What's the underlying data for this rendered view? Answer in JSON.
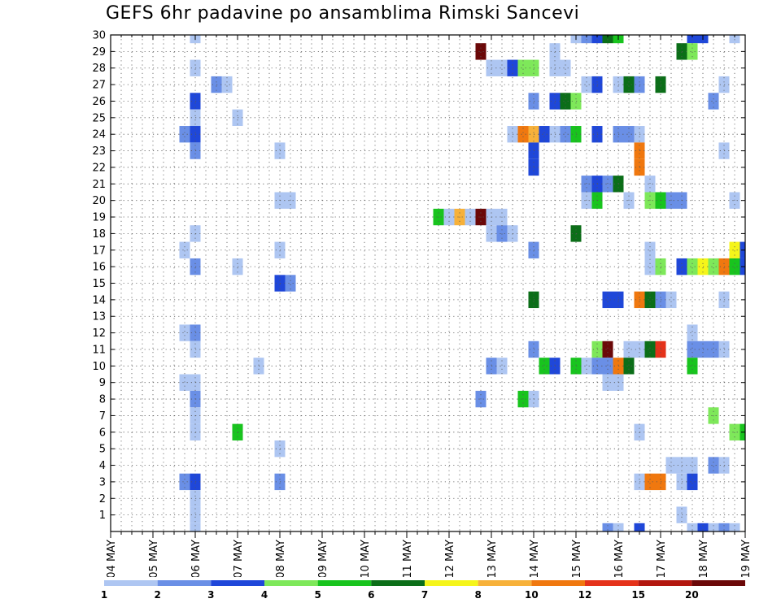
{
  "title": "GEFS 6hr padavine po ansamblima Rimski Sancevi",
  "chart_data": {
    "type": "heatmap",
    "title": "GEFS 6hr padavine po ansamblima Rimski Sancevi",
    "y_ticks": [
      "1",
      "2",
      "3",
      "4",
      "5",
      "6",
      "7",
      "8",
      "9",
      "10",
      "11",
      "12",
      "13",
      "14",
      "15",
      "16",
      "17",
      "18",
      "19",
      "20",
      "21",
      "22",
      "23",
      "24",
      "25",
      "26",
      "27",
      "28",
      "29",
      "30"
    ],
    "x_ticks": [
      "04 MAY",
      "05 MAY",
      "06 MAY",
      "07 MAY",
      "08 MAY",
      "09 MAY",
      "10 MAY",
      "11 MAY",
      "12 MAY",
      "13 MAY",
      "14 MAY",
      "15 MAY",
      "16 MAY",
      "17 MAY",
      "18 MAY",
      "19 MAY"
    ],
    "x_unit_note": "time steps of 6 hours, 4 steps per day, step 0 = 04 MAY",
    "member_range": [
      0,
      30
    ],
    "step_range": [
      0,
      60
    ],
    "grid": true,
    "legend": {
      "labels": [
        "1",
        "2",
        "3",
        "4",
        "5",
        "6",
        "7",
        "8",
        "10",
        "12",
        "15",
        "20"
      ],
      "colors": [
        "#aec6f2",
        "#6a8fe6",
        "#1f47d9",
        "#7ee85a",
        "#18c41e",
        "#0b6e18",
        "#f5f51a",
        "#f7b13a",
        "#f0780f",
        "#e5321a",
        "#b3170f",
        "#6b0808"
      ]
    },
    "cells": [
      {
        "m": 30,
        "s": 8,
        "c": 0
      },
      {
        "m": 30,
        "s": 44,
        "c": 0
      },
      {
        "m": 30,
        "s": 45,
        "c": 1
      },
      {
        "m": 30,
        "s": 46,
        "c": 2
      },
      {
        "m": 30,
        "s": 47,
        "c": 5
      },
      {
        "m": 30,
        "s": 48,
        "c": 4
      },
      {
        "m": 30,
        "s": 55,
        "c": 2
      },
      {
        "m": 30,
        "s": 56,
        "c": 2
      },
      {
        "m": 30,
        "s": 59,
        "c": 0
      },
      {
        "m": 29,
        "s": 35,
        "c": 11
      },
      {
        "m": 29,
        "s": 42,
        "c": 0
      },
      {
        "m": 29,
        "s": 54,
        "c": 5
      },
      {
        "m": 29,
        "s": 55,
        "c": 3
      },
      {
        "m": 28,
        "s": 8,
        "c": 0
      },
      {
        "m": 28,
        "s": 36,
        "c": 0
      },
      {
        "m": 28,
        "s": 37,
        "c": 0
      },
      {
        "m": 28,
        "s": 38,
        "c": 2
      },
      {
        "m": 28,
        "s": 39,
        "c": 3
      },
      {
        "m": 28,
        "s": 40,
        "c": 3
      },
      {
        "m": 28,
        "s": 42,
        "c": 0
      },
      {
        "m": 28,
        "s": 43,
        "c": 0
      },
      {
        "m": 27,
        "s": 10,
        "c": 1
      },
      {
        "m": 27,
        "s": 11,
        "c": 0
      },
      {
        "m": 27,
        "s": 45,
        "c": 0
      },
      {
        "m": 27,
        "s": 46,
        "c": 2
      },
      {
        "m": 27,
        "s": 48,
        "c": 0
      },
      {
        "m": 27,
        "s": 49,
        "c": 5
      },
      {
        "m": 27,
        "s": 50,
        "c": 1
      },
      {
        "m": 27,
        "s": 52,
        "c": 5
      },
      {
        "m": 27,
        "s": 58,
        "c": 0
      },
      {
        "m": 26,
        "s": 8,
        "c": 2
      },
      {
        "m": 26,
        "s": 40,
        "c": 1
      },
      {
        "m": 26,
        "s": 42,
        "c": 2
      },
      {
        "m": 26,
        "s": 43,
        "c": 5
      },
      {
        "m": 26,
        "s": 44,
        "c": 3
      },
      {
        "m": 26,
        "s": 57,
        "c": 1
      },
      {
        "m": 25,
        "s": 8,
        "c": 0
      },
      {
        "m": 25,
        "s": 12,
        "c": 0
      },
      {
        "m": 24,
        "s": 7,
        "c": 1
      },
      {
        "m": 24,
        "s": 8,
        "c": 2
      },
      {
        "m": 24,
        "s": 38,
        "c": 0
      },
      {
        "m": 24,
        "s": 39,
        "c": 8
      },
      {
        "m": 24,
        "s": 40,
        "c": 7
      },
      {
        "m": 24,
        "s": 41,
        "c": 2
      },
      {
        "m": 24,
        "s": 42,
        "c": 0
      },
      {
        "m": 24,
        "s": 43,
        "c": 1
      },
      {
        "m": 24,
        "s": 44,
        "c": 4
      },
      {
        "m": 24,
        "s": 46,
        "c": 2
      },
      {
        "m": 24,
        "s": 48,
        "c": 1
      },
      {
        "m": 24,
        "s": 49,
        "c": 1
      },
      {
        "m": 24,
        "s": 50,
        "c": 0
      },
      {
        "m": 23,
        "s": 8,
        "c": 1
      },
      {
        "m": 23,
        "s": 16,
        "c": 0
      },
      {
        "m": 23,
        "s": 40,
        "c": 2
      },
      {
        "m": 23,
        "s": 50,
        "c": 8
      },
      {
        "m": 23,
        "s": 58,
        "c": 0
      },
      {
        "m": 22,
        "s": 40,
        "c": 2
      },
      {
        "m": 22,
        "s": 50,
        "c": 8
      },
      {
        "m": 21,
        "s": 45,
        "c": 1
      },
      {
        "m": 21,
        "s": 46,
        "c": 2
      },
      {
        "m": 21,
        "s": 47,
        "c": 1
      },
      {
        "m": 21,
        "s": 48,
        "c": 5
      },
      {
        "m": 21,
        "s": 51,
        "c": 0
      },
      {
        "m": 20,
        "s": 16,
        "c": 0
      },
      {
        "m": 20,
        "s": 17,
        "c": 0
      },
      {
        "m": 20,
        "s": 45,
        "c": 0
      },
      {
        "m": 20,
        "s": 46,
        "c": 4
      },
      {
        "m": 20,
        "s": 49,
        "c": 0
      },
      {
        "m": 20,
        "s": 51,
        "c": 3
      },
      {
        "m": 20,
        "s": 52,
        "c": 4
      },
      {
        "m": 20,
        "s": 53,
        "c": 1
      },
      {
        "m": 20,
        "s": 54,
        "c": 1
      },
      {
        "m": 20,
        "s": 59,
        "c": 0
      },
      {
        "m": 19,
        "s": 31,
        "c": 4
      },
      {
        "m": 19,
        "s": 32,
        "c": 0
      },
      {
        "m": 19,
        "s": 33,
        "c": 7
      },
      {
        "m": 19,
        "s": 34,
        "c": 0
      },
      {
        "m": 19,
        "s": 35,
        "c": 11
      },
      {
        "m": 19,
        "s": 36,
        "c": 0
      },
      {
        "m": 19,
        "s": 37,
        "c": 0
      },
      {
        "m": 18,
        "s": 8,
        "c": 0
      },
      {
        "m": 18,
        "s": 36,
        "c": 0
      },
      {
        "m": 18,
        "s": 37,
        "c": 1
      },
      {
        "m": 18,
        "s": 38,
        "c": 0
      },
      {
        "m": 18,
        "s": 44,
        "c": 5
      },
      {
        "m": 17,
        "s": 7,
        "c": 0
      },
      {
        "m": 17,
        "s": 16,
        "c": 0
      },
      {
        "m": 17,
        "s": 40,
        "c": 1
      },
      {
        "m": 17,
        "s": 51,
        "c": 0
      },
      {
        "m": 17,
        "s": 59,
        "c": 6
      },
      {
        "m": 17,
        "s": 60,
        "c": 2
      },
      {
        "m": 16,
        "s": 8,
        "c": 1
      },
      {
        "m": 16,
        "s": 12,
        "c": 0
      },
      {
        "m": 16,
        "s": 51,
        "c": 0
      },
      {
        "m": 16,
        "s": 52,
        "c": 3
      },
      {
        "m": 16,
        "s": 54,
        "c": 2
      },
      {
        "m": 16,
        "s": 55,
        "c": 3
      },
      {
        "m": 16,
        "s": 56,
        "c": 6
      },
      {
        "m": 16,
        "s": 57,
        "c": 3
      },
      {
        "m": 16,
        "s": 58,
        "c": 8
      },
      {
        "m": 16,
        "s": 59,
        "c": 4
      },
      {
        "m": 16,
        "s": 60,
        "c": 2
      },
      {
        "m": 15,
        "s": 16,
        "c": 2
      },
      {
        "m": 15,
        "s": 17,
        "c": 1
      },
      {
        "m": 14,
        "s": 40,
        "c": 5
      },
      {
        "m": 14,
        "s": 47,
        "c": 2
      },
      {
        "m": 14,
        "s": 48,
        "c": 2
      },
      {
        "m": 14,
        "s": 50,
        "c": 8
      },
      {
        "m": 14,
        "s": 51,
        "c": 5
      },
      {
        "m": 14,
        "s": 52,
        "c": 1
      },
      {
        "m": 14,
        "s": 53,
        "c": 0
      },
      {
        "m": 14,
        "s": 58,
        "c": 0
      },
      {
        "m": 12,
        "s": 7,
        "c": 0
      },
      {
        "m": 12,
        "s": 8,
        "c": 1
      },
      {
        "m": 12,
        "s": 55,
        "c": 0
      },
      {
        "m": 11,
        "s": 8,
        "c": 0
      },
      {
        "m": 11,
        "s": 40,
        "c": 1
      },
      {
        "m": 11,
        "s": 46,
        "c": 3
      },
      {
        "m": 11,
        "s": 47,
        "c": 11
      },
      {
        "m": 11,
        "s": 49,
        "c": 0
      },
      {
        "m": 11,
        "s": 50,
        "c": 0
      },
      {
        "m": 11,
        "s": 51,
        "c": 5
      },
      {
        "m": 11,
        "s": 52,
        "c": 9
      },
      {
        "m": 11,
        "s": 55,
        "c": 1
      },
      {
        "m": 11,
        "s": 56,
        "c": 1
      },
      {
        "m": 11,
        "s": 57,
        "c": 1
      },
      {
        "m": 11,
        "s": 58,
        "c": 0
      },
      {
        "m": 10,
        "s": 14,
        "c": 0
      },
      {
        "m": 10,
        "s": 36,
        "c": 1
      },
      {
        "m": 10,
        "s": 37,
        "c": 0
      },
      {
        "m": 10,
        "s": 41,
        "c": 4
      },
      {
        "m": 10,
        "s": 42,
        "c": 2
      },
      {
        "m": 10,
        "s": 44,
        "c": 4
      },
      {
        "m": 10,
        "s": 45,
        "c": 0
      },
      {
        "m": 10,
        "s": 46,
        "c": 1
      },
      {
        "m": 10,
        "s": 47,
        "c": 1
      },
      {
        "m": 10,
        "s": 48,
        "c": 8
      },
      {
        "m": 10,
        "s": 49,
        "c": 5
      },
      {
        "m": 10,
        "s": 55,
        "c": 4
      },
      {
        "m": 9,
        "s": 7,
        "c": 0
      },
      {
        "m": 9,
        "s": 8,
        "c": 0
      },
      {
        "m": 9,
        "s": 47,
        "c": 0
      },
      {
        "m": 9,
        "s": 48,
        "c": 0
      },
      {
        "m": 8,
        "s": 8,
        "c": 1
      },
      {
        "m": 8,
        "s": 35,
        "c": 1
      },
      {
        "m": 8,
        "s": 39,
        "c": 4
      },
      {
        "m": 8,
        "s": 40,
        "c": 0
      },
      {
        "m": 7,
        "s": 8,
        "c": 0
      },
      {
        "m": 7,
        "s": 57,
        "c": 3
      },
      {
        "m": 6,
        "s": 8,
        "c": 0
      },
      {
        "m": 6,
        "s": 12,
        "c": 4
      },
      {
        "m": 6,
        "s": 50,
        "c": 0
      },
      {
        "m": 6,
        "s": 59,
        "c": 3
      },
      {
        "m": 6,
        "s": 60,
        "c": 4
      },
      {
        "m": 5,
        "s": 16,
        "c": 0
      },
      {
        "m": 4,
        "s": 53,
        "c": 0
      },
      {
        "m": 4,
        "s": 54,
        "c": 0
      },
      {
        "m": 4,
        "s": 55,
        "c": 0
      },
      {
        "m": 4,
        "s": 57,
        "c": 1
      },
      {
        "m": 4,
        "s": 58,
        "c": 0
      },
      {
        "m": 3,
        "s": 7,
        "c": 1
      },
      {
        "m": 3,
        "s": 8,
        "c": 2
      },
      {
        "m": 3,
        "s": 16,
        "c": 1
      },
      {
        "m": 3,
        "s": 50,
        "c": 0
      },
      {
        "m": 3,
        "s": 51,
        "c": 8
      },
      {
        "m": 3,
        "s": 52,
        "c": 8
      },
      {
        "m": 3,
        "s": 54,
        "c": 0
      },
      {
        "m": 3,
        "s": 55,
        "c": 2
      },
      {
        "m": 2,
        "s": 8,
        "c": 0
      },
      {
        "m": 1,
        "s": 8,
        "c": 0
      },
      {
        "m": 1,
        "s": 54,
        "c": 0
      },
      {
        "m": 0,
        "s": 8,
        "c": 0
      },
      {
        "m": 0,
        "s": 47,
        "c": 1
      },
      {
        "m": 0,
        "s": 48,
        "c": 0
      },
      {
        "m": 0,
        "s": 50,
        "c": 2
      },
      {
        "m": 0,
        "s": 55,
        "c": 0
      },
      {
        "m": 0,
        "s": 56,
        "c": 2
      },
      {
        "m": 0,
        "s": 57,
        "c": 0
      },
      {
        "m": 0,
        "s": 58,
        "c": 1
      },
      {
        "m": 0,
        "s": 59,
        "c": 0
      }
    ]
  }
}
